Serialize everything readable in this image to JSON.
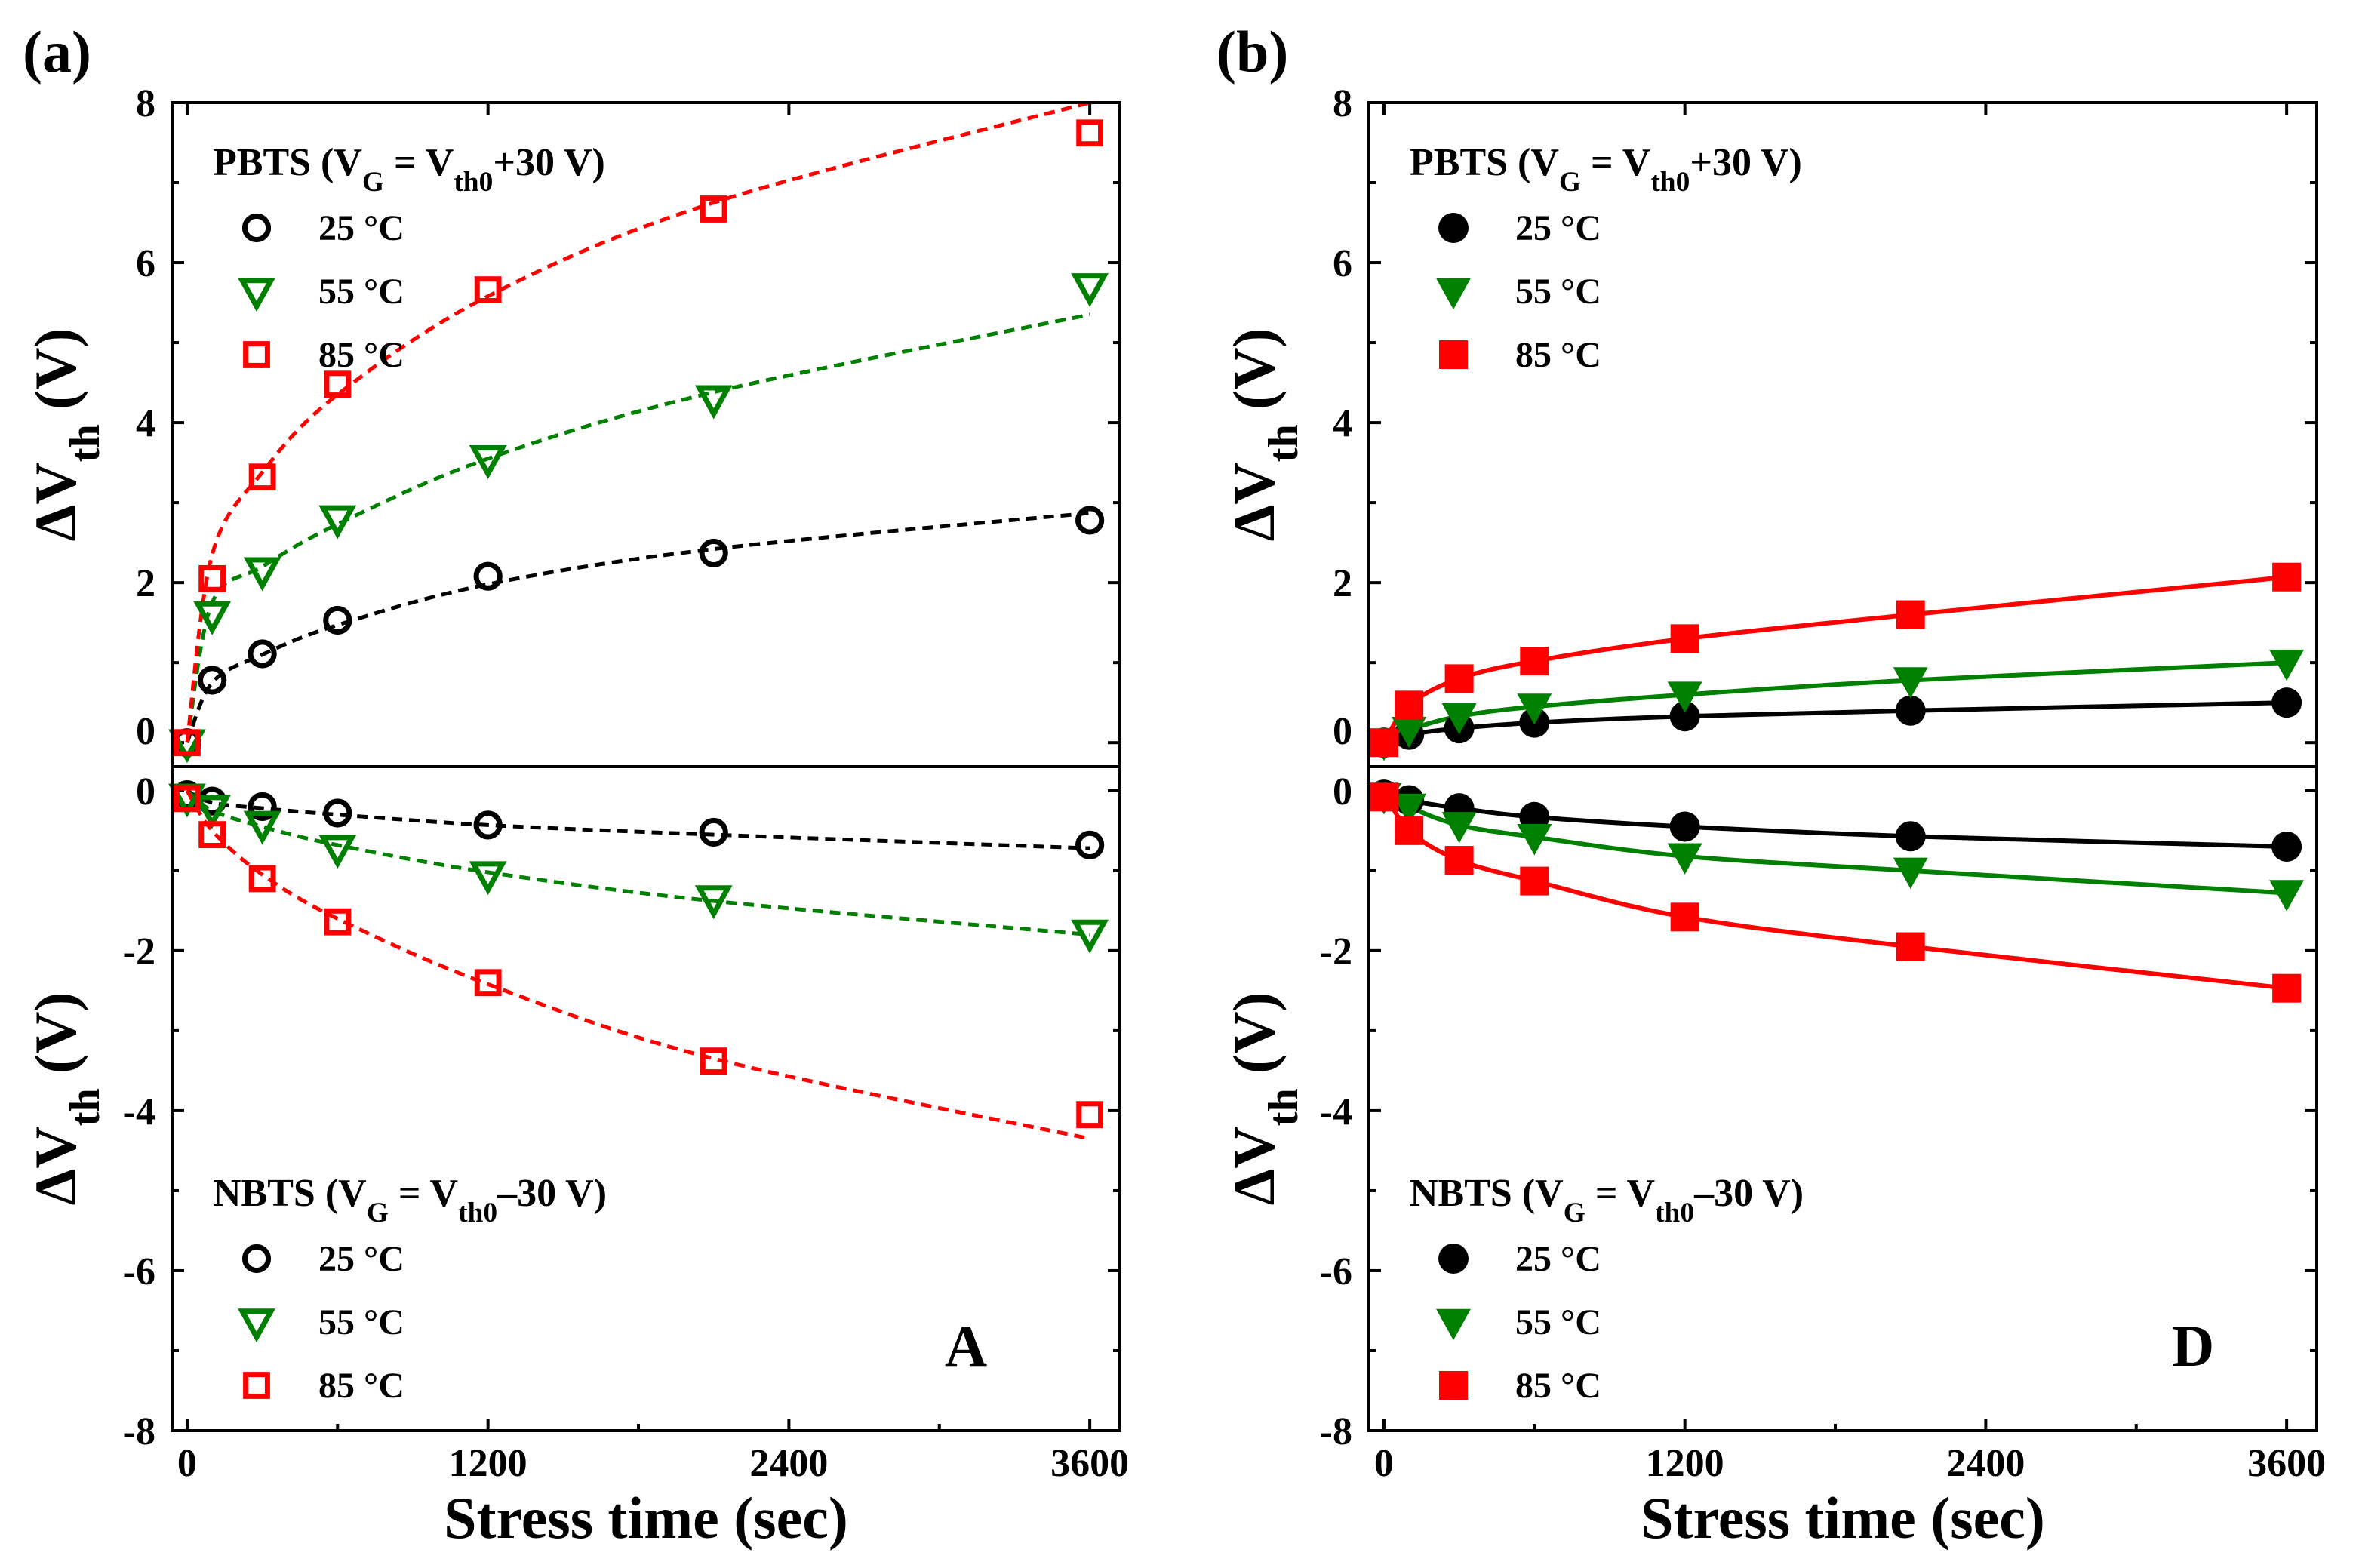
{
  "chart_data": [
    {
      "panel_label": "(a)",
      "type": "scatter",
      "fit_style": "dashed",
      "marker_fill": "open",
      "corner_letter": "A",
      "xlabel": "Stress time (sec)",
      "xlim": [
        -60,
        3720
      ],
      "xticks": [
        0,
        1200,
        2400,
        3600
      ],
      "xtick_labels": [
        "0",
        "1200",
        "2400",
        "3600"
      ],
      "top": {
        "ylabel": "ΔVth (V)",
        "ylim": [
          -0.3,
          8
        ],
        "yticks": [
          0,
          2,
          4,
          6,
          8
        ],
        "ytick_labels": [
          "0",
          "2",
          "4",
          "6",
          "8"
        ],
        "legend_title": "PBTS (VG = Vth0+30 V)",
        "series": [
          {
            "name": "25 °C",
            "marker": "circle",
            "color": "#000000",
            "x": [
              0,
              100,
              300,
              600,
              1200,
              2100,
              3600
            ],
            "y": [
              0,
              0.78,
              1.11,
              1.53,
              2.08,
              2.37,
              2.78
            ],
            "fit": [
              [
                0,
                0
              ],
              [
                100,
                0.75
              ],
              [
                300,
                1.1
              ],
              [
                600,
                1.47
              ],
              [
                1200,
                1.98
              ],
              [
                2100,
                2.42
              ],
              [
                3600,
                2.87
              ]
            ]
          },
          {
            "name": "55 °C",
            "marker": "triangle-down",
            "color": "#008000",
            "x": [
              0,
              100,
              300,
              600,
              1200,
              2100,
              3600
            ],
            "y": [
              0,
              1.6,
              2.15,
              2.8,
              3.55,
              4.3,
              5.7
            ],
            "fit": [
              [
                0,
                0
              ],
              [
                100,
                1.75
              ],
              [
                300,
                2.2
              ],
              [
                600,
                2.73
              ],
              [
                1200,
                3.55
              ],
              [
                2100,
                4.38
              ],
              [
                3600,
                5.35
              ]
            ]
          },
          {
            "name": "85 °C",
            "marker": "square",
            "color": "#ff0000",
            "x": [
              0,
              100,
              300,
              600,
              1200,
              2100,
              3600
            ],
            "y": [
              0,
              2.05,
              3.32,
              4.48,
              5.66,
              6.67,
              7.62
            ],
            "fit": [
              [
                0,
                0
              ],
              [
                100,
                2.35
              ],
              [
                300,
                3.38
              ],
              [
                600,
                4.35
              ],
              [
                1200,
                5.58
              ],
              [
                2100,
                6.75
              ],
              [
                3600,
                8.0
              ]
            ]
          }
        ]
      },
      "bottom": {
        "ylabel": "ΔVth (V)",
        "ylim": [
          -8,
          0.3
        ],
        "yticks": [
          0,
          -2,
          -4,
          -6,
          -8
        ],
        "ytick_labels": [
          "0",
          "-2",
          "-4",
          "-6",
          "-8"
        ],
        "legend_title": "NBTS (VG = Vth0–30 V)",
        "series": [
          {
            "name": "25 °C",
            "marker": "circle",
            "color": "#000000",
            "x": [
              0,
              100,
              300,
              600,
              1200,
              2100,
              3600
            ],
            "y": [
              -0.05,
              -0.13,
              -0.2,
              -0.28,
              -0.43,
              -0.52,
              -0.68
            ],
            "fit": [
              [
                0,
                0
              ],
              [
                100,
                -0.15
              ],
              [
                300,
                -0.22
              ],
              [
                600,
                -0.3
              ],
              [
                1200,
                -0.43
              ],
              [
                2100,
                -0.55
              ],
              [
                3600,
                -0.72
              ]
            ]
          },
          {
            "name": "55 °C",
            "marker": "triangle-down",
            "color": "#008000",
            "x": [
              0,
              100,
              300,
              600,
              1200,
              2100,
              3600
            ],
            "y": [
              -0.08,
              -0.22,
              -0.42,
              -0.72,
              -1.05,
              -1.35,
              -1.78
            ],
            "fit": [
              [
                0,
                0
              ],
              [
                100,
                -0.25
              ],
              [
                300,
                -0.45
              ],
              [
                600,
                -0.68
              ],
              [
                1200,
                -1.02
              ],
              [
                2100,
                -1.38
              ],
              [
                3600,
                -1.8
              ]
            ]
          },
          {
            "name": "85 °C",
            "marker": "square",
            "color": "#ff0000",
            "x": [
              0,
              100,
              300,
              600,
              1200,
              2100,
              3600
            ],
            "y": [
              -0.1,
              -0.55,
              -1.1,
              -1.64,
              -2.4,
              -3.38,
              -4.05
            ],
            "fit": [
              [
                0,
                0
              ],
              [
                100,
                -0.5
              ],
              [
                300,
                -1.05
              ],
              [
                600,
                -1.6
              ],
              [
                1200,
                -2.42
              ],
              [
                2100,
                -3.35
              ],
              [
                3600,
                -4.35
              ]
            ]
          }
        ]
      }
    },
    {
      "panel_label": "(b)",
      "type": "line",
      "fit_style": "solid",
      "marker_fill": "filled",
      "corner_letter": "D",
      "xlabel": "Stress time (sec)",
      "xlim": [
        -60,
        3720
      ],
      "xticks": [
        0,
        1200,
        2400,
        3600
      ],
      "xtick_labels": [
        "0",
        "1200",
        "2400",
        "3600"
      ],
      "top": {
        "ylabel": "ΔVth (V)",
        "ylim": [
          -0.3,
          8
        ],
        "yticks": [
          0,
          2,
          4,
          6,
          8
        ],
        "ytick_labels": [
          "0",
          "2",
          "4",
          "6",
          "8"
        ],
        "legend_title": "PBTS (VG = Vth0+30 V)",
        "series": [
          {
            "name": "25 °C",
            "marker": "circle",
            "color": "#000000",
            "x": [
              0,
              100,
              300,
              600,
              1200,
              2100,
              3600
            ],
            "y": [
              0,
              0.1,
              0.18,
              0.25,
              0.33,
              0.4,
              0.5
            ],
            "fit": [
              [
                0,
                0
              ],
              [
                100,
                0.1
              ],
              [
                300,
                0.18
              ],
              [
                600,
                0.25
              ],
              [
                1200,
                0.33
              ],
              [
                2100,
                0.4
              ],
              [
                3600,
                0.5
              ]
            ]
          },
          {
            "name": "55 °C",
            "marker": "triangle-down",
            "color": "#008000",
            "x": [
              0,
              100,
              300,
              600,
              1200,
              2100,
              3600
            ],
            "y": [
              0,
              0.16,
              0.33,
              0.45,
              0.6,
              0.78,
              1.0
            ],
            "fit": [
              [
                0,
                0
              ],
              [
                100,
                0.16
              ],
              [
                300,
                0.33
              ],
              [
                600,
                0.45
              ],
              [
                1200,
                0.6
              ],
              [
                2100,
                0.78
              ],
              [
                3600,
                1.0
              ]
            ]
          },
          {
            "name": "85 °C",
            "marker": "square",
            "color": "#ff0000",
            "x": [
              0,
              100,
              300,
              600,
              1200,
              2100,
              3600
            ],
            "y": [
              0,
              0.47,
              0.8,
              1.02,
              1.3,
              1.6,
              2.07
            ],
            "fit": [
              [
                0,
                0
              ],
              [
                100,
                0.47
              ],
              [
                300,
                0.8
              ],
              [
                600,
                1.02
              ],
              [
                1200,
                1.3
              ],
              [
                2100,
                1.6
              ],
              [
                3600,
                2.07
              ]
            ]
          }
        ]
      },
      "bottom": {
        "ylabel": "ΔVth (V)",
        "ylim": [
          -8,
          0.3
        ],
        "yticks": [
          0,
          -2,
          -4,
          -6,
          -8
        ],
        "ytick_labels": [
          "0",
          "-2",
          "-4",
          "-6",
          "-8"
        ],
        "legend_title": "NBTS (VG = Vth0–30 V)",
        "series": [
          {
            "name": "25 °C",
            "marker": "circle",
            "color": "#000000",
            "x": [
              0,
              100,
              300,
              600,
              1200,
              2100,
              3600
            ],
            "y": [
              -0.05,
              -0.12,
              -0.22,
              -0.33,
              -0.45,
              -0.57,
              -0.7
            ],
            "fit": [
              [
                0,
                0
              ],
              [
                100,
                -0.12
              ],
              [
                300,
                -0.22
              ],
              [
                600,
                -0.33
              ],
              [
                1200,
                -0.45
              ],
              [
                2100,
                -0.57
              ],
              [
                3600,
                -0.7
              ]
            ]
          },
          {
            "name": "55 °C",
            "marker": "triangle-down",
            "color": "#008000",
            "x": [
              0,
              100,
              300,
              600,
              1200,
              2100,
              3600
            ],
            "y": [
              -0.07,
              -0.2,
              -0.43,
              -0.58,
              -0.82,
              -1.0,
              -1.28
            ],
            "fit": [
              [
                0,
                0
              ],
              [
                100,
                -0.2
              ],
              [
                300,
                -0.43
              ],
              [
                600,
                -0.58
              ],
              [
                1200,
                -0.82
              ],
              [
                2100,
                -1.0
              ],
              [
                3600,
                -1.28
              ]
            ]
          },
          {
            "name": "85 °C",
            "marker": "square",
            "color": "#ff0000",
            "x": [
              0,
              100,
              300,
              600,
              1200,
              2100,
              3600
            ],
            "y": [
              -0.08,
              -0.5,
              -0.87,
              -1.13,
              -1.58,
              -1.95,
              -2.47
            ],
            "fit": [
              [
                0,
                0
              ],
              [
                100,
                -0.5
              ],
              [
                300,
                -0.87
              ],
              [
                600,
                -1.13
              ],
              [
                1200,
                -1.58
              ],
              [
                2100,
                -1.95
              ],
              [
                3600,
                -2.47
              ]
            ]
          }
        ]
      }
    }
  ]
}
